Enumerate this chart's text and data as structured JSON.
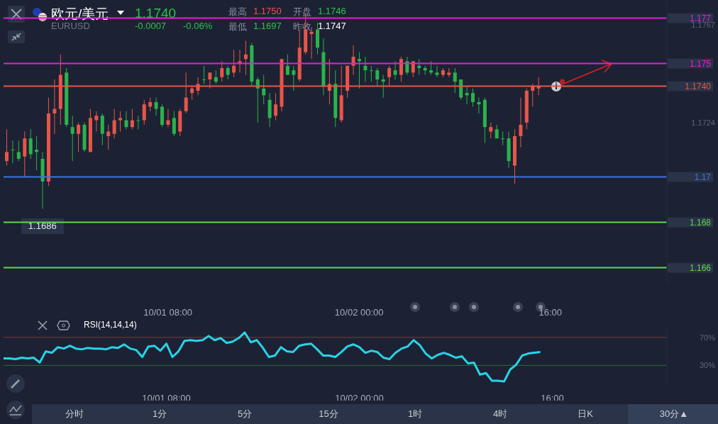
{
  "chart_data": [
    {
      "type": "candlestick",
      "title": "欧元/美元",
      "subtitle": "EURUSD",
      "categories": [
        null,
        null,
        null,
        null,
        null,
        null,
        null,
        null,
        null,
        null,
        null,
        null,
        null,
        null,
        null,
        null,
        null,
        null,
        null,
        null,
        null,
        null,
        null,
        null,
        null,
        null,
        null,
        "10/01 08:00",
        null,
        null,
        null,
        null,
        null,
        null,
        null,
        null,
        null,
        null,
        null,
        null,
        null,
        null,
        null,
        null,
        null,
        null,
        null,
        null,
        null,
        null,
        null,
        null,
        null,
        null,
        null,
        null,
        null,
        null,
        null,
        "10/02 00:00",
        null,
        null,
        null,
        null,
        null,
        null,
        null,
        null,
        null,
        null,
        null,
        null,
        null,
        null,
        null,
        null,
        null,
        null,
        null,
        null,
        null,
        null,
        null,
        null,
        null,
        null,
        null,
        null,
        null,
        null,
        null,
        "16:00",
        null,
        null,
        null,
        null,
        null,
        null,
        null,
        null,
        null,
        null,
        null,
        null,
        null,
        null,
        null,
        null,
        null,
        null,
        null
      ],
      "ohlc": [
        [
          1.1707,
          1.1721,
          1.1705,
          1.1711
        ],
        [
          1.1712,
          1.1716,
          1.1706,
          1.1712
        ],
        [
          1.1711,
          1.1716,
          1.1707,
          1.1708
        ],
        [
          1.1709,
          1.172,
          1.17,
          1.1717
        ],
        [
          1.1717,
          1.1721,
          1.1708,
          1.171
        ],
        [
          1.1712,
          1.1718,
          1.1703,
          1.1711
        ],
        [
          1.1708,
          1.1711,
          1.1686,
          1.1698
        ],
        [
          1.1698,
          1.1735,
          1.1696,
          1.1728
        ],
        [
          1.1728,
          1.1743,
          1.1719,
          1.173
        ],
        [
          1.173,
          1.1754,
          1.1723,
          1.1745
        ],
        [
          1.1746,
          1.1748,
          1.1722,
          1.1723
        ],
        [
          1.1722,
          1.1727,
          1.1707,
          1.1719
        ],
        [
          1.1719,
          1.1724,
          1.1711,
          1.1723
        ],
        [
          1.1723,
          1.1724,
          1.1711,
          1.1712
        ],
        [
          1.1711,
          1.173,
          1.1711,
          1.1726
        ],
        [
          1.1725,
          1.1729,
          1.172,
          1.1727
        ],
        [
          1.1727,
          1.1728,
          1.1714,
          1.1719
        ],
        [
          1.1718,
          1.1723,
          1.1712,
          1.172
        ],
        [
          1.1719,
          1.173,
          1.1717,
          1.1725
        ],
        [
          1.1725,
          1.1729,
          1.172,
          1.1726
        ],
        [
          1.1725,
          1.1729,
          1.1721,
          1.1722
        ],
        [
          1.1722,
          1.173,
          1.1721,
          1.1725
        ],
        [
          1.1725,
          1.1727,
          1.1721,
          1.1725
        ],
        [
          1.1725,
          1.1734,
          1.1723,
          1.1732
        ],
        [
          1.1731,
          1.1735,
          1.1729,
          1.1733
        ],
        [
          1.1733,
          1.1735,
          1.1727,
          1.173
        ],
        [
          1.1731,
          1.1732,
          1.1722,
          1.1723
        ],
        [
          1.1723,
          1.173,
          1.1722,
          1.1725
        ],
        [
          1.1726,
          1.1729,
          1.1718,
          1.1719
        ],
        [
          1.172,
          1.173,
          1.1718,
          1.1729
        ],
        [
          1.1729,
          1.1746,
          1.1728,
          1.1735
        ],
        [
          1.1737,
          1.174,
          1.1734,
          1.1739
        ],
        [
          1.1738,
          1.1744,
          1.1736,
          1.1741
        ],
        [
          1.1743,
          1.1749,
          1.1741,
          1.1743
        ],
        [
          1.1743,
          1.1746,
          1.1739,
          1.1746
        ],
        [
          1.1744,
          1.1747,
          1.1741,
          1.1742
        ],
        [
          1.1744,
          1.1751,
          1.1742,
          1.1748
        ],
        [
          1.1748,
          1.1749,
          1.1743,
          1.1745
        ],
        [
          1.1746,
          1.1756,
          1.1744,
          1.1749
        ],
        [
          1.175,
          1.1756,
          1.1746,
          1.1751
        ],
        [
          1.1752,
          1.176,
          1.1745,
          1.1754
        ],
        [
          1.1758,
          1.1759,
          1.174,
          1.1742
        ],
        [
          1.1743,
          1.1744,
          1.1724,
          1.1739
        ],
        [
          1.1739,
          1.1745,
          1.1732,
          1.1736
        ],
        [
          1.1734,
          1.1737,
          1.1722,
          1.1726
        ],
        [
          1.1727,
          1.1737,
          1.1725,
          1.1732
        ],
        [
          1.1731,
          1.1752,
          1.1729,
          1.1752
        ],
        [
          1.1749,
          1.1754,
          1.1745,
          1.1745
        ],
        [
          1.1747,
          1.1749,
          1.1738,
          1.1745
        ],
        [
          1.1743,
          1.1765,
          1.1742,
          1.1757
        ],
        [
          1.1755,
          1.1772,
          1.1754,
          1.1765
        ],
        [
          1.1763,
          1.1766,
          1.1752,
          1.1764
        ],
        [
          1.1765,
          1.1768,
          1.1754,
          1.1757
        ],
        [
          1.1755,
          1.1761,
          1.1736,
          1.174
        ],
        [
          1.1738,
          1.1752,
          1.1732,
          1.1741
        ],
        [
          1.1741,
          1.1747,
          1.1722,
          1.1726
        ],
        [
          1.1725,
          1.1749,
          1.1724,
          1.1736
        ],
        [
          1.1738,
          1.1749,
          1.1735,
          1.1749
        ],
        [
          1.1749,
          1.1758,
          1.1745,
          1.1753
        ],
        [
          1.1752,
          1.1755,
          1.1739,
          1.1751
        ],
        [
          1.1749,
          1.1753,
          1.1742,
          1.1747
        ],
        [
          1.1747,
          1.1749,
          1.1742,
          1.1747
        ],
        [
          1.1747,
          1.1748,
          1.174,
          1.1743
        ],
        [
          1.1743,
          1.1745,
          1.1735,
          1.1742
        ],
        [
          1.1744,
          1.1749,
          1.174,
          1.1748
        ],
        [
          1.1747,
          1.1751,
          1.1743,
          1.1745
        ],
        [
          1.1745,
          1.1753,
          1.1742,
          1.1752
        ],
        [
          1.1751,
          1.1753,
          1.1745,
          1.1746
        ],
        [
          1.1746,
          1.1751,
          1.1744,
          1.1751
        ],
        [
          1.1749,
          1.1752,
          1.1745,
          1.1748
        ],
        [
          1.1748,
          1.1749,
          1.1745,
          1.1747
        ],
        [
          1.1747,
          1.1751,
          1.1745,
          1.1746
        ],
        [
          1.1746,
          1.1749,
          1.1744,
          1.1745
        ],
        [
          1.1745,
          1.1748,
          1.1744,
          1.1747
        ],
        [
          1.1745,
          1.1748,
          1.1744,
          1.1746
        ],
        [
          1.1746,
          1.1748,
          1.1737,
          1.1742
        ],
        [
          1.1743,
          1.1743,
          1.1734,
          1.1735
        ],
        [
          1.1737,
          1.174,
          1.1732,
          1.1736
        ],
        [
          1.1737,
          1.1739,
          1.1731,
          1.1733
        ],
        [
          1.1733,
          1.1735,
          1.1728,
          1.1732
        ],
        [
          1.1734,
          1.1735,
          1.1715,
          1.1722
        ],
        [
          1.172,
          1.1724,
          1.1717,
          1.1722
        ],
        [
          1.1721,
          1.1723,
          1.1717,
          1.1717
        ],
        [
          1.1717,
          1.172,
          1.1714,
          1.1717
        ],
        [
          1.1717,
          1.172,
          1.1704,
          1.1707
        ],
        [
          1.1705,
          1.1721,
          1.1697,
          1.1718
        ],
        [
          1.1718,
          1.1735,
          1.1713,
          1.1723
        ],
        [
          1.1724,
          1.1739,
          1.1721,
          1.1738
        ],
        [
          1.1738,
          1.1741,
          1.1731,
          1.174
        ],
        [
          1.1739,
          1.1744,
          1.1736,
          1.174
        ],
        null,
        null,
        null,
        null,
        null,
        null,
        null,
        null,
        null,
        null,
        null,
        null,
        null,
        null,
        null,
        null,
        null,
        null,
        null,
        null,
        null
      ],
      "colors": [
        "#e8554a",
        "#2bb24c",
        "#2bb24c",
        "#e8554a",
        "#2bb24c",
        "#2bb24c",
        "#2bb24c",
        "#e8554a",
        "#e8554a",
        "#e8554a",
        "#2bb24c",
        "#2bb24c",
        "#e8554a",
        "#2bb24c",
        "#e8554a",
        "#e8554a",
        "#2bb24c",
        "#e8554a",
        "#e8554a",
        "#e8554a",
        "#2bb24c",
        "#e8554a",
        "#2bb24c",
        "#e8554a",
        "#e8554a",
        "#2bb24c",
        "#2bb24c",
        "#e8554a",
        "#2bb24c",
        "#e8554a",
        "#e8554a",
        "#e8554a",
        "#e8554a",
        "#2bb24c",
        "#e8554a",
        "#2bb24c",
        "#e8554a",
        "#2bb24c",
        "#e8554a",
        "#e8554a",
        "#e8554a",
        "#2bb24c",
        "#2bb24c",
        "#2bb24c",
        "#2bb24c",
        "#e8554a",
        "#e8554a",
        "#2bb24c",
        "#2bb24c",
        "#e8554a",
        "#e8554a",
        "#e8554a",
        "#2bb24c",
        "#2bb24c",
        "#e8554a",
        "#2bb24c",
        "#e8554a",
        "#e8554a",
        "#e8554a",
        "#2bb24c",
        "#2bb24c",
        "#2bb24c",
        "#2bb24c",
        "#2bb24c",
        "#e8554a",
        "#2bb24c",
        "#e8554a",
        "#2bb24c",
        "#e8554a",
        "#2bb24c",
        "#2bb24c",
        "#2bb24c",
        "#2bb24c",
        "#e8554a",
        "#e8554a",
        "#2bb24c",
        "#2bb24c",
        "#2bb24c",
        "#2bb24c",
        "#2bb24c",
        "#2bb24c",
        "#e8554a",
        "#2bb24c",
        "#2bb24c",
        "#2bb24c",
        "#e8554a",
        "#e8554a",
        "#e8554a",
        "#e8554a",
        "#e8554a",
        null,
        null,
        null,
        null,
        null,
        null,
        null,
        null,
        null,
        null,
        null,
        null,
        null,
        null,
        null,
        null,
        null,
        null,
        null,
        null,
        null
      ],
      "ylim": [
        1.1653,
        1.1778
      ],
      "yticks": [
        1.1767,
        1.1724
      ],
      "ref_lines": [
        {
          "axis": "y",
          "value": 1.177,
          "label": "1.177",
          "color": "#e01ee0"
        },
        {
          "axis": "y",
          "value": 1.175,
          "label": "1.175",
          "color": "#e01ee0"
        },
        {
          "axis": "y",
          "value": 1.174,
          "label": "1.1740",
          "color": "#e8554a"
        },
        {
          "axis": "y",
          "value": 1.17,
          "label": "1.17",
          "color": "#3d74e6"
        },
        {
          "axis": "y",
          "value": 1.168,
          "label": "1.168",
          "color": "#5fd94a"
        },
        {
          "axis": "y",
          "value": 1.166,
          "label": "1.166",
          "color": "#5fd94a"
        }
      ],
      "annotations": [
        "1.1740",
        "-0.0007",
        "-0.06%",
        "最高",
        "1.1750",
        "开盘",
        "1.1746",
        "最低",
        "1.1697",
        "昨收",
        "1.1747",
        {
          "text": "1.1686",
          "y": 1.1686
        }
      ]
    },
    {
      "type": "line",
      "title": "RSI(14,14,14)",
      "categories": [
        null,
        null,
        null,
        null,
        null,
        null,
        null,
        null,
        null,
        null,
        null,
        null,
        null,
        null,
        null,
        null,
        null,
        null,
        null,
        null,
        null,
        null,
        null,
        null,
        null,
        null,
        null,
        "10/01 08:00",
        null,
        null,
        null,
        null,
        null,
        null,
        null,
        null,
        null,
        null,
        null,
        null,
        null,
        null,
        null,
        null,
        null,
        null,
        null,
        null,
        null,
        null,
        null,
        null,
        null,
        null,
        null,
        null,
        null,
        null,
        null,
        "10/02 00:00",
        null,
        null,
        null,
        null,
        null,
        null,
        null,
        null,
        null,
        null,
        null,
        null,
        null,
        null,
        null,
        null,
        null,
        null,
        null,
        null,
        null,
        null,
        null,
        null,
        null,
        null,
        null,
        null,
        null,
        null,
        null,
        "16:00",
        null,
        null,
        null,
        null,
        null,
        null,
        null,
        null,
        null,
        null,
        null,
        null,
        null,
        null,
        null,
        null,
        null,
        null,
        null
      ],
      "series": [
        {
          "color": "#29d3e6",
          "values": [
            40,
            40,
            39,
            41,
            40,
            41,
            34,
            50,
            48,
            56,
            54,
            58,
            54,
            53,
            55,
            54,
            54,
            53,
            56,
            55,
            60,
            54,
            52,
            42,
            57,
            58,
            51,
            61,
            42,
            50,
            65,
            66,
            65,
            66,
            72,
            66,
            69,
            62,
            64,
            69,
            77,
            63,
            66,
            55,
            42,
            44,
            56,
            50,
            49,
            58,
            60,
            61,
            53,
            44,
            44,
            42,
            49,
            57,
            60,
            56,
            48,
            51,
            49,
            41,
            39,
            48,
            54,
            57,
            66,
            59,
            47,
            40,
            45,
            48,
            45,
            41,
            43,
            33,
            34,
            17,
            19,
            8,
            8,
            7,
            24,
            31,
            44,
            47,
            48,
            49,
            null,
            null,
            null,
            null,
            null,
            null,
            null,
            null,
            null,
            null,
            null,
            null,
            null,
            null,
            null,
            null,
            null,
            null,
            null,
            null,
            null
          ]
        }
      ],
      "ylim": [
        0,
        84
      ],
      "yticks": [
        {
          "value": 70,
          "label": "70%"
        },
        {
          "value": 30,
          "label": "30%"
        }
      ],
      "ref_lines": [
        {
          "axis": "y",
          "value": 70,
          "color": "#7a3a3a"
        },
        {
          "axis": "y",
          "value": 30,
          "color": "#2f6b3a"
        }
      ],
      "marker": "none",
      "line_style": "solid",
      "annotations": [
        "分时",
        "1分",
        "5分",
        "15分",
        "1时",
        "4时",
        "日K",
        "30分▲"
      ]
    }
  ]
}
